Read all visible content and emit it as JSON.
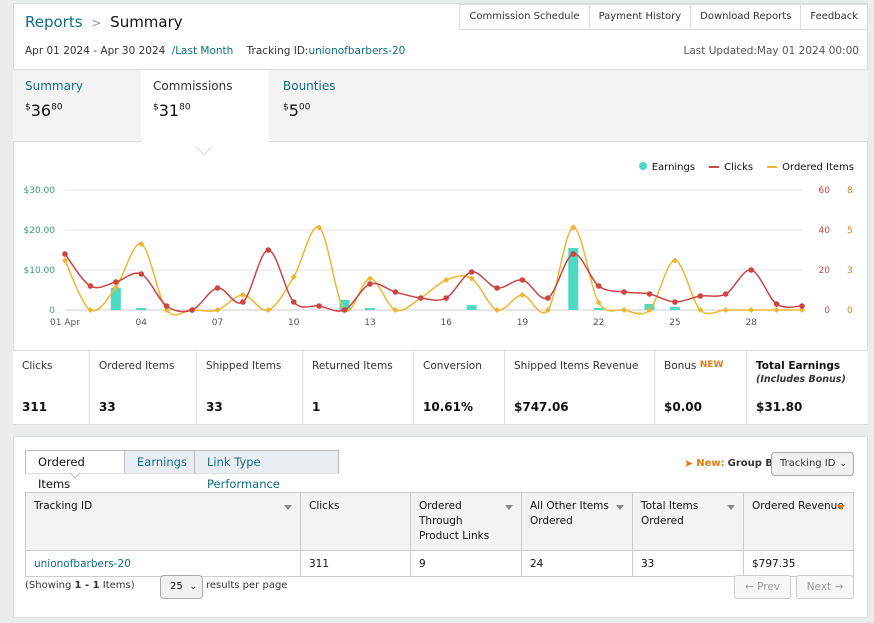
{
  "breadcrumb": {
    "root": "Reports",
    "separator": ">",
    "current": "Summary"
  },
  "top_nav": [
    "Commission Schedule",
    "Payment History",
    "Download Reports",
    "Feedback"
  ],
  "date_range": "Apr 01 2024 - Apr 30 2024",
  "range_link": "/Last Month",
  "tracking_label": "Tracking ID:",
  "tracking_id": "unionofbarbers-20",
  "last_updated": "Last Updated:May 01 2024 00:00",
  "summary_tabs": [
    {
      "label": "Summary",
      "dollar": "$",
      "whole": "36",
      "cents": "80"
    },
    {
      "label": "Commissions",
      "dollar": "$",
      "whole": "31",
      "cents": "80"
    },
    {
      "label": "Bounties",
      "dollar": "$",
      "whole": "5",
      "cents": "00"
    }
  ],
  "legend": [
    "Earnings",
    "Clicks",
    "Ordered Items"
  ],
  "colors": {
    "earnings": "#4dd9c1",
    "clicks": "#cc4444",
    "ordered": "#f0b52f",
    "link": "#0f6d83"
  },
  "chart_data": {
    "type": "line",
    "x": [
      "01",
      "02",
      "03",
      "04",
      "05",
      "06",
      "07",
      "08",
      "09",
      "10",
      "11",
      "12",
      "13",
      "14",
      "15",
      "16",
      "17",
      "18",
      "19",
      "20",
      "21",
      "22",
      "23",
      "24",
      "25",
      "26",
      "27",
      "28",
      "29",
      "30"
    ],
    "x_tick_labels": [
      "01 Apr",
      "04",
      "07",
      "10",
      "13",
      "16",
      "19",
      "22",
      "25",
      "28"
    ],
    "y_left_ticks": [
      "$30.00",
      "$20.00",
      "$10.00",
      "0"
    ],
    "y_clicks_ticks": [
      "60",
      "40",
      "20",
      "0"
    ],
    "y_items_ticks": [
      "8",
      "5",
      "3",
      "0"
    ],
    "ylim_earnings": [
      0,
      30
    ],
    "ylim_clicks": [
      0,
      60
    ],
    "ylim_items": [
      0,
      8
    ],
    "series": [
      {
        "name": "Earnings",
        "type": "bar",
        "values": [
          0,
          0,
          5.5,
          0.5,
          0,
          0,
          0,
          0,
          0,
          0,
          0,
          2.5,
          0.5,
          0,
          0,
          0,
          1.2,
          0,
          0,
          0,
          15.5,
          0.5,
          0,
          1.5,
          0.8,
          0,
          0,
          0,
          0,
          0
        ]
      },
      {
        "name": "Clicks",
        "type": "line",
        "values": [
          28,
          12,
          14,
          18,
          2,
          0,
          11,
          4,
          30,
          4,
          2,
          0,
          13,
          9,
          6,
          6,
          19,
          11,
          15,
          6,
          28,
          12,
          9,
          8,
          4,
          7,
          8,
          20,
          3,
          2
        ]
      },
      {
        "name": "Ordered Items",
        "type": "line",
        "values": [
          3.3,
          0,
          1.5,
          4.4,
          0,
          0,
          0,
          1,
          0,
          2.2,
          5.5,
          0,
          2.1,
          0,
          0.8,
          2,
          2.1,
          0,
          1,
          0,
          5.5,
          0.5,
          0,
          0,
          3.3,
          0,
          0,
          0,
          0,
          0
        ]
      }
    ]
  },
  "metrics": [
    {
      "label": "Clicks",
      "value": "311"
    },
    {
      "label": "Ordered Items",
      "value": "33"
    },
    {
      "label": "Shipped Items",
      "value": "33"
    },
    {
      "label": "Returned Items",
      "value": "1"
    },
    {
      "label": "Conversion",
      "value": "10.61%"
    },
    {
      "label": "Shipped Items Revenue",
      "value": "$747.06"
    },
    {
      "label": "Bonus",
      "badge": "NEW",
      "value": "$0.00"
    },
    {
      "label": "Total Earnings",
      "sub": "(Includes Bonus)",
      "value": "$31.80"
    }
  ],
  "bottom_tabs": [
    "Ordered Items",
    "Earnings",
    "Link Type Performance"
  ],
  "group_by": {
    "new": "New:",
    "label": "Group By:",
    "value": "Tracking ID"
  },
  "table": {
    "headers": [
      "Tracking ID",
      "Clicks",
      "Ordered Through Product Links",
      "All Other Items Ordered",
      "Total Items Ordered",
      "Ordered Revenue"
    ],
    "rows": [
      [
        "unionofbarbers-20",
        "311",
        "9",
        "24",
        "33",
        "$797.35"
      ]
    ]
  },
  "footer": {
    "showing_pre": "(Showing ",
    "showing_bold": "1 - 1",
    "showing_post": " Items)",
    "per_page": "25",
    "per_page_label": "results per page",
    "prev": "← Prev",
    "next": "Next →"
  }
}
